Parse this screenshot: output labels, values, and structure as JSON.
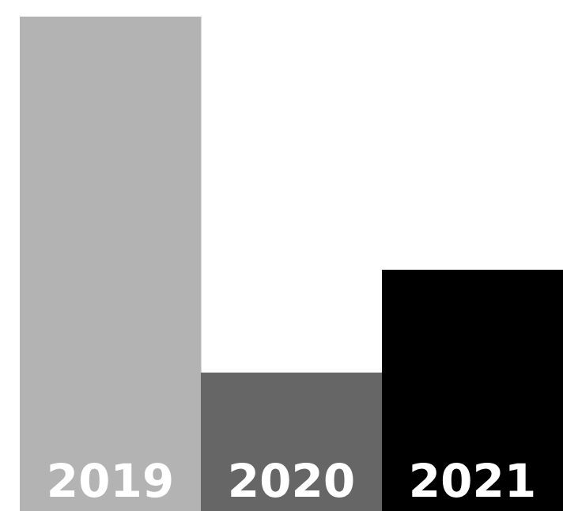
{
  "chart_data": {
    "type": "bar",
    "categories": [
      "2019",
      "2020",
      "2021"
    ],
    "values": [
      100,
      28,
      48.8
    ],
    "colors": [
      "#b3b3b3",
      "#666666",
      "#000000"
    ],
    "label_color": "#ffffff",
    "ylim": [
      0,
      100
    ],
    "grid": false,
    "title": "",
    "xlabel": "",
    "ylabel": ""
  }
}
